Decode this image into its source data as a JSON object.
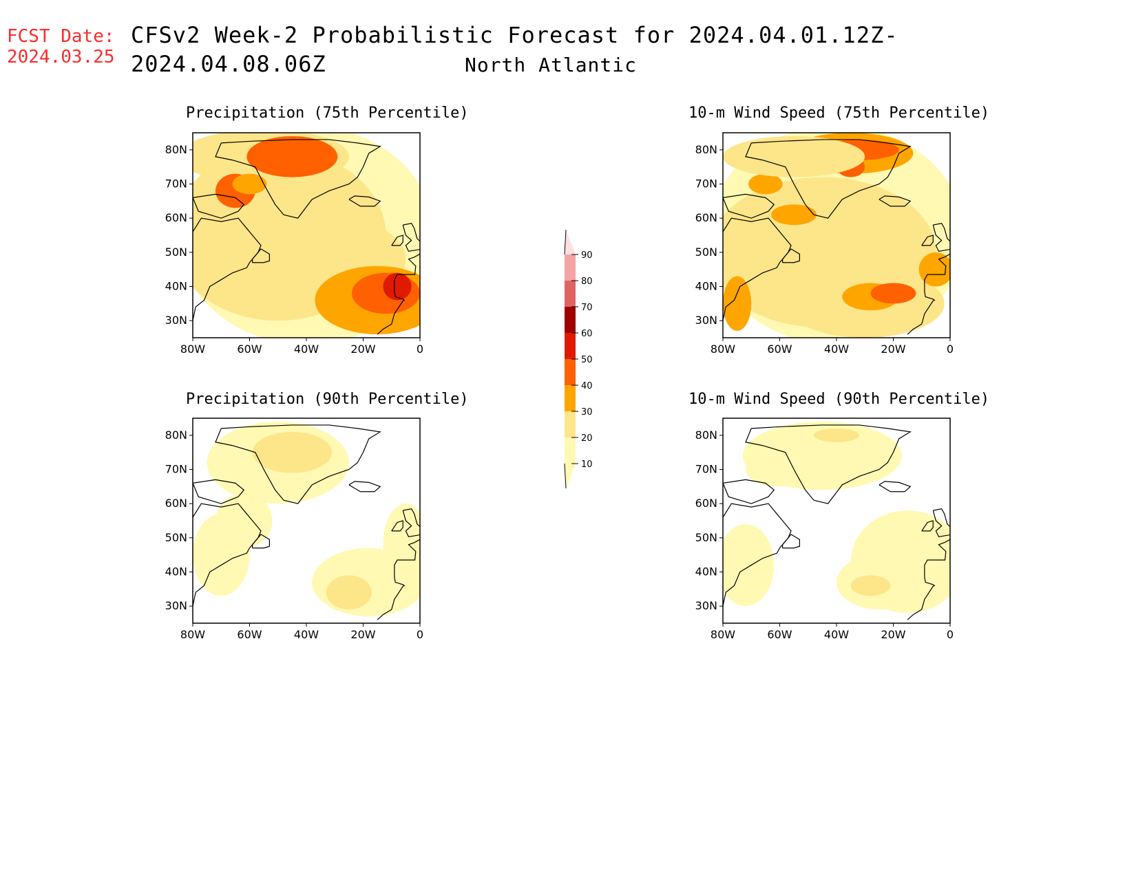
{
  "header": {
    "fcst_label": "FCST Date:",
    "fcst_date": "2024.03.25",
    "title": "CFSv2 Week-2 Probabilistic Forecast for 2024.04.01.12Z-2024.04.08.06Z",
    "region": "North Atlantic"
  },
  "axes": {
    "lat_labels": [
      "80N",
      "70N",
      "60N",
      "50N",
      "40N",
      "30N"
    ],
    "lon_labels": [
      "80W",
      "60W",
      "40W",
      "20W",
      "0"
    ]
  },
  "panels": [
    {
      "title": "Precipitation (75th Percentile)"
    },
    {
      "title": "10-m Wind Speed (75th Percentile)"
    },
    {
      "title": "Precipitation (90th Percentile)"
    },
    {
      "title": "10-m Wind Speed (90th Percentile)"
    }
  ],
  "colorbar": {
    "levels": [
      "10",
      "20",
      "30",
      "40",
      "50",
      "60",
      "70",
      "80",
      "90"
    ],
    "colors": [
      "#fff9b3",
      "#fde58a",
      "#ffa500",
      "#ff6000",
      "#e01a00",
      "#a00000",
      "#e06363",
      "#f5a3a3",
      "#ffe0e0"
    ]
  }
}
